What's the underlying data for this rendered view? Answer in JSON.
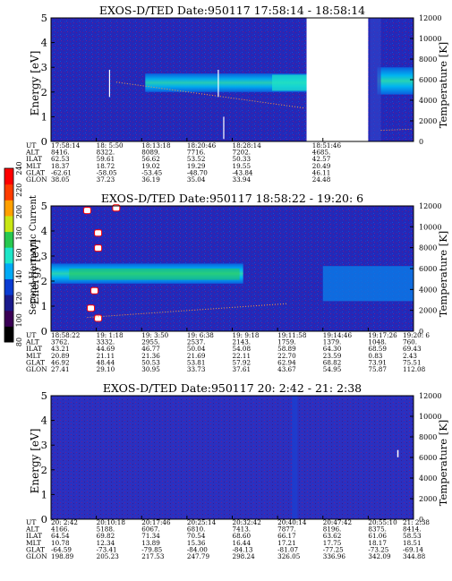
{
  "page": {
    "colorbar": {
      "label": "Second Harmonic Current",
      "ticks": [
        "80",
        "100",
        "120",
        "140",
        "160",
        "180",
        "200",
        "220",
        "240"
      ],
      "colors": [
        "#000000",
        "#3a0055",
        "#1a1a8c",
        "#0a3cd2",
        "#00aaf5",
        "#1ee6c8",
        "#28c850",
        "#c8e614",
        "#ffa000",
        "#ff3c00",
        "#ff0000"
      ]
    },
    "row_labels": [
      "UT",
      "ALT",
      "ILAT",
      "MLT",
      "GLAT",
      "GLON"
    ]
  },
  "chart_data": [
    {
      "type": "heatmap",
      "title": "EXOS-D/TED   Date:950117  17:58:14 - 18:58:14",
      "ylabel": "Energy [eV]",
      "ylabel_right": "Temperature [K]",
      "ylim": [
        0,
        5
      ],
      "ylim_right": [
        0,
        12000
      ],
      "yticks": [
        "0",
        "1",
        "2",
        "3",
        "4",
        "5"
      ],
      "yticks_right": [
        "0",
        "2000",
        "4000",
        "6000",
        "8000",
        "10000",
        "12000"
      ],
      "data_gap": [
        0.705,
        0.875
      ],
      "ephemeris": {
        "UT": [
          "17:58:14",
          "18: 5:50",
          "18:13:18",
          "18:20:46",
          "18:28:14",
          "",
          "18:51:46"
        ],
        "ALT": [
          "8416.",
          "8322.",
          "8089.",
          "7716.",
          "7202.",
          "",
          "4685."
        ],
        "ILAT": [
          "62.53",
          "59.61",
          "56.62",
          "53.52",
          "50.33",
          "",
          "42.57"
        ],
        "MLT": [
          "18.37",
          "18.72",
          "19.02",
          "19.29",
          "19.55",
          "",
          "20.49"
        ],
        "GLAT": [
          "-62.61",
          "-58.05",
          "-53.45",
          "-48.70",
          "-43.84",
          "",
          "46.11"
        ],
        "GLON": [
          "38.05",
          "37.23",
          "36.19",
          "35.04",
          "33.94",
          "",
          "24.48"
        ]
      }
    },
    {
      "type": "heatmap",
      "title": "EXOS-D/TED   Date:950117  18:58:22 - 19:20: 6",
      "ylabel": "Energy [eV]",
      "ylabel_right": "Temperature [K]",
      "ylim": [
        0,
        5
      ],
      "ylim_right": [
        0,
        12000
      ],
      "yticks": [
        "0",
        "1",
        "2",
        "3",
        "4",
        "5"
      ],
      "yticks_right": [
        "0",
        "2000",
        "4000",
        "6000",
        "8000",
        "10000",
        "12000"
      ],
      "ephemeris": {
        "UT": [
          "18:58:22",
          "19: 1:18",
          "19: 3:50",
          "19: 6:38",
          "19: 9:18",
          "19:11:58",
          "19:14:46",
          "19:17:26",
          "19:20: 6"
        ],
        "ALT": [
          "3762.",
          "3332.",
          "2955.",
          "2537.",
          "2143.",
          "1759.",
          "1379.",
          "1048.",
          "760."
        ],
        "ILAT": [
          "43.21",
          "44.69",
          "46.77",
          "50.04",
          "54.08",
          "58.89",
          "64.30",
          "68.59",
          "69.43"
        ],
        "MLT": [
          "20.89",
          "21.11",
          "21.36",
          "21.69",
          "22.11",
          "22.70",
          "23.59",
          "0.83",
          "2.43"
        ],
        "GLAT": [
          "46.92",
          "48.44",
          "50.53",
          "53.81",
          "57.92",
          "62.94",
          "68.82",
          "73.91",
          "75.51"
        ],
        "GLON": [
          "27.41",
          "29.10",
          "30.95",
          "33.73",
          "37.61",
          "43.67",
          "54.95",
          "75.87",
          "112.08"
        ]
      }
    },
    {
      "type": "heatmap",
      "title": "EXOS-D/TED   Date:950117  20: 2:42 - 21: 2:38",
      "ylabel": "Energy [eV]",
      "ylabel_right": "Temperature [K]",
      "ylim": [
        0,
        5
      ],
      "ylim_right": [
        0,
        12000
      ],
      "yticks": [
        "0",
        "1",
        "2",
        "3",
        "4",
        "5"
      ],
      "yticks_right": [
        "0",
        "2000",
        "4000",
        "6000",
        "8000",
        "10000",
        "12000"
      ],
      "ephemeris": {
        "UT": [
          "20: 2:42",
          "20:10:18",
          "20:17:46",
          "20:25:14",
          "20:32:42",
          "20:40:14",
          "20:47:42",
          "20:55:10",
          "21: 2:38"
        ],
        "ALT": [
          "4166.",
          "5188.",
          "6067.",
          "6810.",
          "7413.",
          "7877.",
          "8196.",
          "8375.",
          "8414."
        ],
        "ILAT": [
          "64.54",
          "69.82",
          "71.34",
          "70.54",
          "68.60",
          "66.17",
          "63.62",
          "61.06",
          "58.53"
        ],
        "MLT": [
          "10.78",
          "12.34",
          "13.89",
          "15.36",
          "16.44",
          "17.21",
          "17.75",
          "18.17",
          "18.51"
        ],
        "GLAT": [
          "-64.59",
          "-73.41",
          "-79.85",
          "-84.00",
          "-84.13",
          "-81.07",
          "-77.25",
          "-73.25",
          "-69.14"
        ],
        "GLON": [
          "198.89",
          "205.23",
          "217.53",
          "247.79",
          "298.24",
          "326.05",
          "336.96",
          "342.09",
          "344.88"
        ]
      }
    }
  ]
}
